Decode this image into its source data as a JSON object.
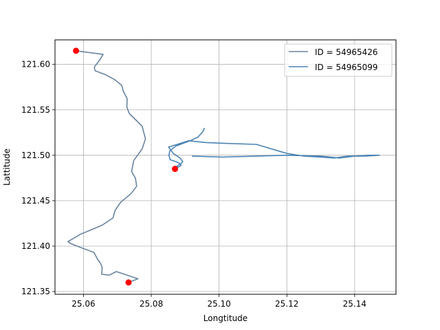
{
  "chart_data": {
    "type": "line",
    "title": "",
    "xlabel": "Longtitude",
    "ylabel": "Lattitude",
    "xlim": [
      25.0516,
      25.1522
    ],
    "ylim": [
      121.347,
      121.627
    ],
    "xticks": [
      25.06,
      25.08,
      25.1,
      25.12,
      25.14
    ],
    "xtick_labels": [
      "25.06",
      "25.08",
      "25.10",
      "25.12",
      "25.14"
    ],
    "yticks": [
      121.35,
      121.4,
      121.45,
      121.5,
      121.55,
      121.6
    ],
    "ytick_labels": [
      "121.35",
      "121.40",
      "121.45",
      "121.50",
      "121.55",
      "121.60"
    ],
    "grid": true,
    "legend_position": "top-right",
    "series": [
      {
        "name": "ID = 54965426",
        "color": "#6a849f",
        "x": [
          25.0578,
          25.0658,
          25.0648,
          25.0632,
          25.0634,
          25.0663,
          25.0693,
          25.0713,
          25.0717,
          25.0729,
          25.0728,
          25.0735,
          25.0773,
          25.0783,
          25.0773,
          25.0748,
          25.0742,
          25.0753,
          25.0757,
          25.0741,
          25.0709,
          25.0693,
          25.0687,
          25.0655,
          25.0591,
          25.0554,
          25.0561,
          25.0595,
          25.0631,
          25.0641,
          25.065,
          25.0655,
          25.0654,
          25.0676,
          25.0697,
          25.0761,
          25.0733
        ],
        "y": [
          121.615,
          121.611,
          121.605,
          121.597,
          121.593,
          121.589,
          121.583,
          121.577,
          121.571,
          121.562,
          121.553,
          121.546,
          121.532,
          121.518,
          121.507,
          121.494,
          121.482,
          121.475,
          121.466,
          121.458,
          121.448,
          121.439,
          121.431,
          121.423,
          121.413,
          121.405,
          121.403,
          121.398,
          121.393,
          121.386,
          121.381,
          121.377,
          121.369,
          121.368,
          121.372,
          121.364,
          121.36
        ]
      },
      {
        "name": "ID = 54965099",
        "color": "#4a82b4",
        "x": [
          25.0957,
          25.0952,
          25.0938,
          25.0915,
          25.0893,
          25.0872,
          25.0855,
          25.0852,
          25.0856,
          25.0873,
          25.0884,
          25.0888,
          25.088,
          25.0863,
          25.0872,
          25.088,
          25.0888,
          25.0893,
          25.0885,
          25.0865,
          25.0851,
          25.086,
          25.091,
          25.096,
          25.102,
          25.111,
          25.12,
          25.125,
          25.13,
          25.134,
          25.138,
          25.143,
          25.1473,
          25.144,
          25.14,
          25.1355,
          25.13,
          25.12,
          25.111,
          25.101,
          25.092
        ],
        "y": [
          121.53,
          121.526,
          121.52,
          121.516,
          121.513,
          121.51,
          121.505,
          121.5,
          121.495,
          121.493,
          121.491,
          121.489,
          121.487,
          121.486,
          121.487,
          121.489,
          121.491,
          121.493,
          121.497,
          121.502,
          121.509,
          121.51,
          121.516,
          121.514,
          121.513,
          121.512,
          121.502,
          121.499,
          121.498,
          121.497,
          121.499,
          121.499,
          121.5,
          121.5,
          121.499,
          121.497,
          121.499,
          121.5,
          121.499,
          121.498,
          121.499
        ]
      }
    ],
    "markers": {
      "color": "#ff0000",
      "points": [
        {
          "x": 25.0578,
          "y": 121.615
        },
        {
          "x": 25.0733,
          "y": 121.36
        },
        {
          "x": 25.087,
          "y": 121.485
        }
      ]
    }
  }
}
